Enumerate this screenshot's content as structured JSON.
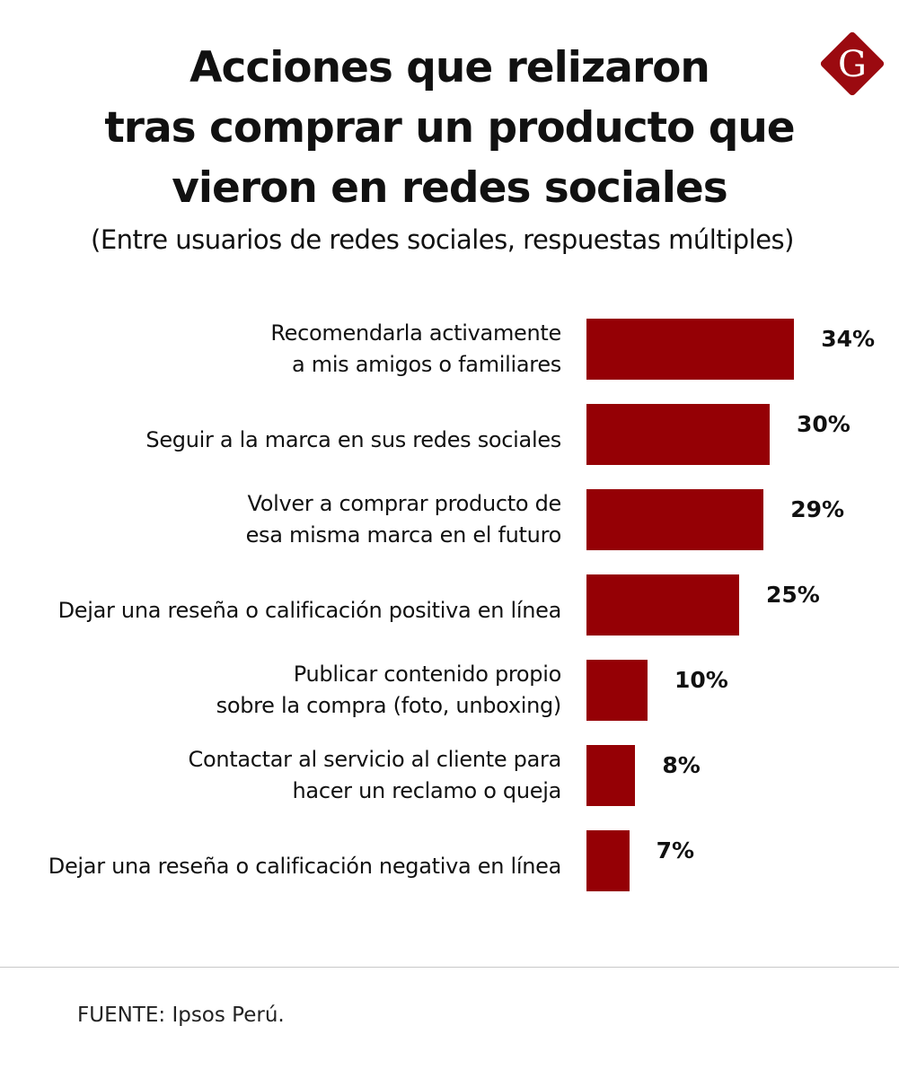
{
  "title_lines": [
    "Acciones que relizaron",
    "tras comprar un producto que",
    "vieron en redes sociales"
  ],
  "subtitle": "(Entre usuarios de redes sociales, respuestas múltiples)",
  "logo_letter": "G",
  "colors": {
    "bar": "#950005",
    "logo": "#9b0a10",
    "text": "#111111"
  },
  "chart_data": {
    "type": "bar",
    "orientation": "horizontal",
    "title": "Acciones que relizaron tras comprar un producto que vieron en redes sociales",
    "subtitle": "(Entre usuarios de redes sociales, respuestas múltiples)",
    "categories": [
      [
        "Recomendarla activamente",
        "a mis amigos o familiares"
      ],
      [
        "Seguir a la marca en sus redes sociales"
      ],
      [
        "Volver a comprar producto de",
        "esa misma marca en el futuro"
      ],
      [
        "Dejar una reseña o calificación positiva en línea"
      ],
      [
        "Publicar contenido propio",
        "sobre la compra (foto, unboxing)"
      ],
      [
        "Contactar al servicio al cliente para",
        "hacer un reclamo o queja"
      ],
      [
        "Dejar una reseña o calificación negativa en línea"
      ]
    ],
    "values": [
      34,
      30,
      29,
      25,
      10,
      8,
      7
    ],
    "labels": [
      "34%",
      "30%",
      "29%",
      "25%",
      "10%",
      "8%",
      "7%"
    ],
    "unit": "%",
    "grid": false
  },
  "source": "FUENTE: Ipsos Perú."
}
